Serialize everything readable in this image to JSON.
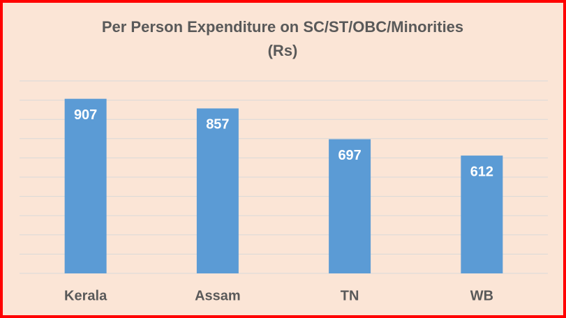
{
  "chart_data": {
    "type": "bar",
    "title": [
      "Per Person Expenditure on SC/ST/OBC/Minorities",
      "(Rs)"
    ],
    "categories": [
      "Kerala",
      "Assam",
      "TN",
      "WB"
    ],
    "values": [
      907,
      857,
      697,
      612
    ],
    "color": "#5b9bd5",
    "ylim": [
      0,
      1000
    ],
    "yticks": [
      0,
      100,
      200,
      300,
      400,
      500,
      600,
      700,
      800,
      900,
      1000
    ],
    "grid": true
  }
}
